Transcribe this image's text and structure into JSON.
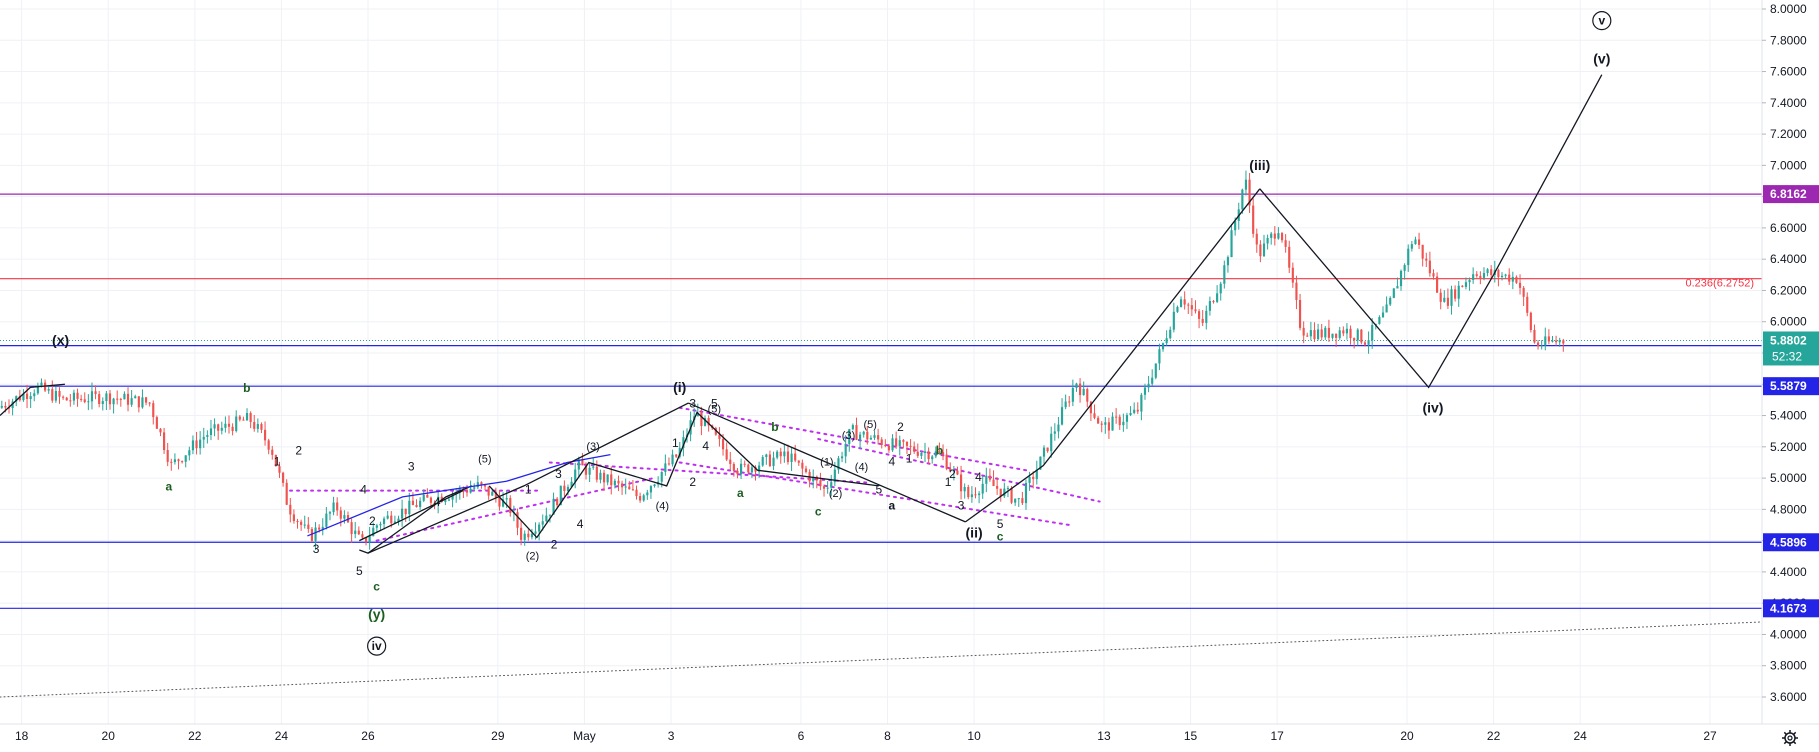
{
  "chart_data": {
    "type": "candlestick",
    "colors": {
      "up": "#26a69a",
      "down": "#ef5350",
      "grid": "#eef1f6",
      "axis_text": "#131722",
      "support_line": "#2424e6",
      "resistance_purple": "#9c27b0",
      "fib_line": "#f23645",
      "wave_black": "#131722",
      "wave_green": "#1b5e20",
      "channel_dotted": "#bf2ef0",
      "current_price_bg": "#26a69a"
    },
    "y_axis": {
      "min": 3.45,
      "max": 8.05,
      "ticks": [
        "3.6000",
        "3.8000",
        "4.0000",
        "4.2000",
        "4.4000",
        "4.6000",
        "4.8000",
        "5.0000",
        "5.2000",
        "5.4000",
        "5.6000",
        "5.8000",
        "6.0000",
        "6.2000",
        "6.4000",
        "6.6000",
        "6.8000",
        "7.0000",
        "7.2000",
        "7.4000",
        "7.6000",
        "7.8000",
        "8.0000"
      ]
    },
    "x_axis": {
      "start_day": 17.5,
      "end_day": 58.2,
      "tick_labels": [
        {
          "label": "18",
          "day": 18
        },
        {
          "label": "20",
          "day": 20
        },
        {
          "label": "22",
          "day": 22
        },
        {
          "label": "24",
          "day": 24
        },
        {
          "label": "26",
          "day": 26
        },
        {
          "label": "29",
          "day": 29
        },
        {
          "label": "May",
          "day": 31
        },
        {
          "label": "3",
          "day": 33
        },
        {
          "label": "6",
          "day": 36
        },
        {
          "label": "8",
          "day": 38
        },
        {
          "label": "10",
          "day": 40
        },
        {
          "label": "13",
          "day": 43
        },
        {
          "label": "15",
          "day": 45
        },
        {
          "label": "17",
          "day": 47
        },
        {
          "label": "20",
          "day": 50
        },
        {
          "label": "22",
          "day": 52
        },
        {
          "label": "24",
          "day": 54
        },
        {
          "label": "27",
          "day": 57
        }
      ]
    },
    "horizontal_levels": [
      {
        "value": 6.8162,
        "label": "6.8162",
        "color": "#9c27b0"
      },
      {
        "value": 6.2752,
        "label": "",
        "color": "#f23645"
      },
      {
        "value": 5.8472,
        "label": "5.8472",
        "color": "#2424e6"
      },
      {
        "value": 5.5879,
        "label": "5.5879",
        "color": "#2424e6"
      },
      {
        "value": 4.5896,
        "label": "4.5896",
        "color": "#2424e6"
      },
      {
        "value": 4.1673,
        "label": "4.1673",
        "color": "#2424e6"
      }
    ],
    "fib_label": "0.236(6.2752)",
    "current_price": {
      "value": 5.8802,
      "label": "5.8802",
      "countdown": "52:32"
    },
    "price_path": [
      [
        17.5,
        5.45
      ],
      [
        18.4,
        5.58
      ],
      [
        19.0,
        5.5
      ],
      [
        20.0,
        5.52
      ],
      [
        21.0,
        5.48
      ],
      [
        21.5,
        5.08
      ],
      [
        22.3,
        5.28
      ],
      [
        23.3,
        5.38
      ],
      [
        23.8,
        5.2
      ],
      [
        24.2,
        4.82
      ],
      [
        24.7,
        4.62
      ],
      [
        25.3,
        4.82
      ],
      [
        25.9,
        4.58
      ],
      [
        26.3,
        4.72
      ],
      [
        27.3,
        4.85
      ],
      [
        28.6,
        4.95
      ],
      [
        29.3,
        4.82
      ],
      [
        29.6,
        4.62
      ],
      [
        30.2,
        4.78
      ],
      [
        30.9,
        5.08
      ],
      [
        32.3,
        4.88
      ],
      [
        33.2,
        5.15
      ],
      [
        33.6,
        5.42
      ],
      [
        34.0,
        5.28
      ],
      [
        34.6,
        5.05
      ],
      [
        35.7,
        5.15
      ],
      [
        36.6,
        4.92
      ],
      [
        37.2,
        5.3
      ],
      [
        38.3,
        5.2
      ],
      [
        39.3,
        5.15
      ],
      [
        39.9,
        4.88
      ],
      [
        40.3,
        4.98
      ],
      [
        41.1,
        4.85
      ],
      [
        41.6,
        5.12
      ],
      [
        42.4,
        5.62
      ],
      [
        43.0,
        5.32
      ],
      [
        43.8,
        5.42
      ],
      [
        44.4,
        5.85
      ],
      [
        44.8,
        6.18
      ],
      [
        45.3,
        5.98
      ],
      [
        45.8,
        6.32
      ],
      [
        46.3,
        6.92
      ],
      [
        46.6,
        6.42
      ],
      [
        47.1,
        6.62
      ],
      [
        47.6,
        5.95
      ],
      [
        48.1,
        5.92
      ],
      [
        48.6,
        5.95
      ],
      [
        49.1,
        5.88
      ],
      [
        49.6,
        6.08
      ],
      [
        50.2,
        6.55
      ],
      [
        50.9,
        6.12
      ],
      [
        51.6,
        6.32
      ],
      [
        52.6,
        6.28
      ],
      [
        53.0,
        5.85
      ],
      [
        53.6,
        5.88
      ]
    ],
    "wave_lines": [
      {
        "points": [
          [
            17.5,
            5.4
          ],
          [
            18.2,
            5.58
          ],
          [
            19.0,
            5.6
          ]
        ],
        "color": "#131722"
      },
      {
        "points": [
          [
            25.8,
            4.54
          ],
          [
            26.0,
            4.52
          ],
          [
            27.8,
            4.88
          ],
          [
            28.4,
            4.95
          ]
        ],
        "color": "#131722"
      },
      {
        "points": [
          [
            25.8,
            4.6
          ],
          [
            28.2,
            4.92
          ]
        ],
        "color": "#131722"
      },
      {
        "points": [
          [
            24.6,
            4.63
          ],
          [
            26.8,
            4.88
          ],
          [
            29.2,
            4.98
          ]
        ],
        "color": "#2424e6"
      },
      {
        "points": [
          [
            29.2,
            4.98
          ],
          [
            30.6,
            5.1
          ],
          [
            31.6,
            5.15
          ]
        ],
        "color": "#2424e6"
      },
      {
        "points": [
          [
            28.8,
            4.95
          ],
          [
            29.9,
            4.62
          ],
          [
            31.1,
            5.1
          ],
          [
            32.9,
            4.95
          ],
          [
            33.6,
            5.42
          ],
          [
            35.0,
            5.05
          ],
          [
            37.8,
            4.95
          ]
        ],
        "color": "#131722"
      },
      {
        "points": [
          [
            26.0,
            4.52
          ],
          [
            29.6,
            4.95
          ],
          [
            33.4,
            5.48
          ]
        ],
        "color": "#131722"
      },
      {
        "points": [
          [
            33.4,
            5.48
          ],
          [
            39.8,
            4.72
          ]
        ],
        "color": "#131722"
      },
      {
        "points": [
          [
            39.8,
            4.72
          ],
          [
            41.6,
            5.08
          ],
          [
            46.6,
            6.85
          ]
        ],
        "color": "#131722"
      },
      {
        "points": [
          [
            46.6,
            6.85
          ],
          [
            50.5,
            5.58
          ],
          [
            52.0,
            6.3
          ]
        ],
        "color": "#131722"
      },
      {
        "points": [
          [
            52.0,
            6.3
          ],
          [
            54.5,
            7.58
          ]
        ],
        "color": "#131722"
      }
    ],
    "channels": [
      {
        "points": [
          [
            24.2,
            4.92
          ],
          [
            30.0,
            4.92
          ]
        ]
      },
      {
        "points": [
          [
            26.2,
            4.6
          ],
          [
            32.6,
            5.0
          ]
        ]
      },
      {
        "points": [
          [
            30.2,
            5.1
          ],
          [
            37.6,
            4.97
          ]
        ]
      },
      {
        "points": [
          [
            33.2,
            5.45
          ],
          [
            41.2,
            5.05
          ]
        ]
      },
      {
        "points": [
          [
            33.2,
            5.1
          ],
          [
            42.2,
            4.7
          ]
        ]
      },
      {
        "points": [
          [
            36.4,
            5.25
          ],
          [
            42.9,
            4.85
          ]
        ]
      },
      {
        "points": [
          [
            17.5,
            3.6
          ],
          [
            58.2,
            4.08
          ]
        ]
      }
    ],
    "wave_labels": [
      {
        "text": "(x)",
        "day": 18.9,
        "price": 5.85,
        "color": "#131722"
      },
      {
        "text": "b",
        "day": 23.2,
        "price": 5.55,
        "color": "#1b5e20"
      },
      {
        "text": "a",
        "day": 21.4,
        "price": 4.92,
        "color": "#1b5e20"
      },
      {
        "text": "2",
        "day": 24.4,
        "price": 5.15,
        "color": "#131722"
      },
      {
        "text": "1",
        "day": 23.9,
        "price": 5.08,
        "color": "#131722"
      },
      {
        "text": "3",
        "day": 24.8,
        "price": 4.52,
        "color": "#131722"
      },
      {
        "text": "4",
        "day": 25.9,
        "price": 4.9,
        "color": "#131722"
      },
      {
        "text": "3",
        "day": 27.0,
        "price": 5.05,
        "color": "#131722"
      },
      {
        "text": "4",
        "day": 27.6,
        "price": 4.82,
        "color": "#131722"
      },
      {
        "text": "(5)",
        "day": 28.7,
        "price": 5.1,
        "color": "#131722"
      },
      {
        "text": "5",
        "day": 25.8,
        "price": 4.38,
        "color": "#131722"
      },
      {
        "text": "2",
        "day": 26.1,
        "price": 4.7,
        "color": "#131722"
      },
      {
        "text": "c",
        "day": 26.2,
        "price": 4.28,
        "color": "#1b5e20"
      },
      {
        "text": "(y)",
        "day": 26.2,
        "price": 4.1,
        "color": "#1b5e20"
      },
      {
        "text": "iv",
        "day": 26.2,
        "price": 3.9,
        "color": "#131722",
        "circled": true
      },
      {
        "text": "1",
        "day": 29.7,
        "price": 4.9,
        "color": "#131722"
      },
      {
        "text": "(2)",
        "day": 29.8,
        "price": 4.48,
        "color": "#131722"
      },
      {
        "text": "2",
        "day": 30.3,
        "price": 4.55,
        "color": "#131722"
      },
      {
        "text": "3",
        "day": 30.4,
        "price": 5.0,
        "color": "#131722"
      },
      {
        "text": "4",
        "day": 30.9,
        "price": 4.68,
        "color": "#131722"
      },
      {
        "text": "(3)",
        "day": 31.2,
        "price": 5.18,
        "color": "#131722"
      },
      {
        "text": "(4)",
        "day": 32.8,
        "price": 4.8,
        "color": "#131722"
      },
      {
        "text": "(i)",
        "day": 33.2,
        "price": 5.55,
        "color": "#131722"
      },
      {
        "text": "1",
        "day": 33.1,
        "price": 5.2,
        "color": "#131722"
      },
      {
        "text": "3",
        "day": 33.5,
        "price": 5.45,
        "color": "#131722"
      },
      {
        "text": "(5)",
        "day": 34.0,
        "price": 5.42,
        "color": "#131722"
      },
      {
        "text": "5",
        "day": 34.0,
        "price": 5.45,
        "color": "#131722"
      },
      {
        "text": "4",
        "day": 33.8,
        "price": 5.18,
        "color": "#131722"
      },
      {
        "text": "2",
        "day": 33.5,
        "price": 4.95,
        "color": "#131722"
      },
      {
        "text": "a",
        "day": 34.6,
        "price": 4.88,
        "color": "#1b5e20"
      },
      {
        "text": "b",
        "day": 35.4,
        "price": 5.3,
        "color": "#1b5e20"
      },
      {
        "text": "c",
        "day": 36.4,
        "price": 4.76,
        "color": "#1b5e20"
      },
      {
        "text": "(1)",
        "day": 36.6,
        "price": 5.08,
        "color": "#131722"
      },
      {
        "text": "(2)",
        "day": 36.8,
        "price": 4.88,
        "color": "#131722"
      },
      {
        "text": "(3)",
        "day": 37.1,
        "price": 5.25,
        "color": "#131722"
      },
      {
        "text": "(4)",
        "day": 37.4,
        "price": 5.05,
        "color": "#131722"
      },
      {
        "text": "(5)",
        "day": 37.6,
        "price": 5.32,
        "color": "#131722"
      },
      {
        "text": "2",
        "day": 38.3,
        "price": 5.3,
        "color": "#131722"
      },
      {
        "text": "4",
        "day": 38.1,
        "price": 5.08,
        "color": "#131722"
      },
      {
        "text": "5",
        "day": 37.8,
        "price": 4.9,
        "color": "#131722"
      },
      {
        "text": "a",
        "day": 38.1,
        "price": 4.8,
        "color": "#131722"
      },
      {
        "text": "1",
        "day": 38.5,
        "price": 5.1,
        "color": "#131722"
      },
      {
        "text": "b",
        "day": 39.2,
        "price": 5.15,
        "color": "#1b5e20"
      },
      {
        "text": "2",
        "day": 39.5,
        "price": 5.0,
        "color": "#131722"
      },
      {
        "text": "1",
        "day": 39.4,
        "price": 4.95,
        "color": "#131722"
      },
      {
        "text": "3",
        "day": 39.7,
        "price": 4.8,
        "color": "#131722"
      },
      {
        "text": "4",
        "day": 40.1,
        "price": 4.98,
        "color": "#131722"
      },
      {
        "text": "(ii)",
        "day": 40.0,
        "price": 4.62,
        "color": "#131722"
      },
      {
        "text": "5",
        "day": 40.6,
        "price": 4.68,
        "color": "#131722"
      },
      {
        "text": "c",
        "day": 40.6,
        "price": 4.6,
        "color": "#1b5e20"
      },
      {
        "text": "(iii)",
        "day": 46.6,
        "price": 6.97,
        "color": "#131722"
      },
      {
        "text": "(iv)",
        "day": 50.6,
        "price": 5.42,
        "color": "#131722"
      },
      {
        "text": "(v)",
        "day": 54.5,
        "price": 7.65,
        "color": "#131722"
      },
      {
        "text": "v",
        "day": 54.5,
        "price": 7.9,
        "color": "#131722",
        "circled": true
      }
    ]
  }
}
